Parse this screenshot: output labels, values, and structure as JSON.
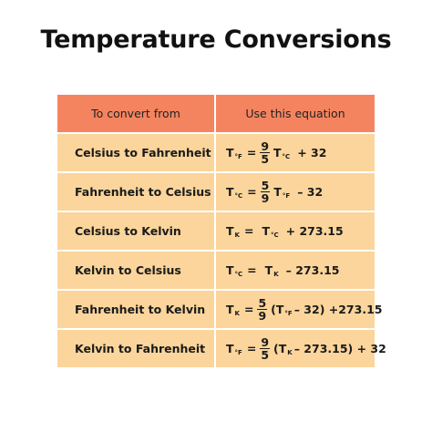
{
  "title": "Temperature Conversions",
  "table": {
    "headers": [
      "To convert from",
      "Use this equation"
    ],
    "rows": [
      {
        "label": "Celsius to Fahrenheit",
        "eq": {
          "t": "T",
          "sub": "°F",
          "eqsign": "=",
          "num": "9",
          "den": "5",
          "t2": "T",
          "sub2": "°C",
          "tail": "+ 32"
        }
      },
      {
        "label": "Fahrenheit to Celsius",
        "eq": {
          "t": "T",
          "sub": "°C",
          "eqsign": "=",
          "num": "5",
          "den": "9",
          "t2": "T",
          "sub2": "°F",
          "tail": "– 32"
        }
      },
      {
        "label": "Celsius to Kelvin",
        "eq": {
          "t": "T",
          "sub": "K",
          "eqsign": "=",
          "t2": "T",
          "sub2": "°C",
          "tail": "+ 273.15"
        }
      },
      {
        "label": "Kelvin to Celsius",
        "eq": {
          "t": "T",
          "sub": "°C",
          "eqsign": "=",
          "t2": "T",
          "sub2": "K",
          "tail": "– 273.15"
        }
      },
      {
        "label": "Fahrenheit to Kelvin",
        "eq": {
          "t": "T",
          "sub": "K",
          "eqsign": "=",
          "num": "5",
          "den": "9",
          "open": "(",
          "t2": "T",
          "sub2": "°F",
          "tail": "– 32) +273.15"
        }
      },
      {
        "label": "Kelvin to Fahrenheit",
        "eq": {
          "t": "T",
          "sub": "°F",
          "eqsign": "=",
          "num": "9",
          "den": "5",
          "open": "(",
          "t2": "T",
          "sub2": "K",
          "tail": "– 273.15) + 32"
        }
      }
    ]
  },
  "colors": {
    "header_bg": "#f4845f",
    "row_bg": "#fbd59b"
  }
}
